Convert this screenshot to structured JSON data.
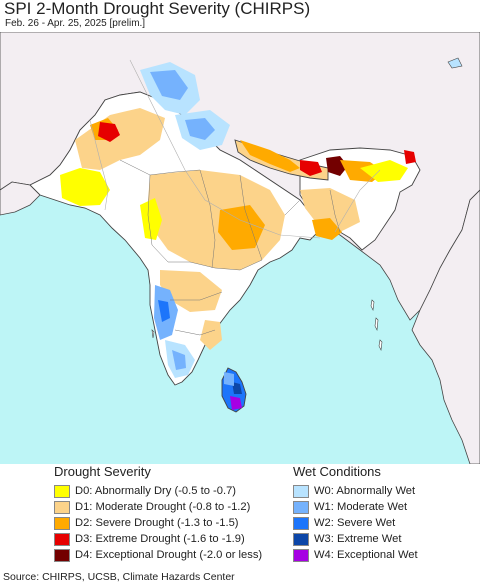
{
  "title": "SPI 2-Month Drought Severity (CHIRPS)",
  "subtitle": "Feb. 26 - Apr. 25, 2025 [prelim.]",
  "colors": {
    "ocean": "#bdf5f6",
    "outside_land": "#f3eef2",
    "no_anomaly": "#ffffff",
    "border": "#444444",
    "state_border": "#777777",
    "river": "#b0b0b0"
  },
  "legend": {
    "drought": {
      "title": "Drought Severity",
      "items": [
        {
          "code": "D0",
          "label": "D0: Abnormally Dry (-0.5 to -0.7)",
          "color": "#ffff00"
        },
        {
          "code": "D1",
          "label": "D1: Moderate Drought (-0.8 to -1.2)",
          "color": "#fcd38a"
        },
        {
          "code": "D2",
          "label": "D2: Severe Drought (-1.3 to -1.5)",
          "color": "#ffaa00"
        },
        {
          "code": "D3",
          "label": "D3: Extreme Drought (-1.6 to -1.9)",
          "color": "#e60000"
        },
        {
          "code": "D4",
          "label": "D4: Exceptional Drought (-2.0 or less)",
          "color": "#730000"
        }
      ]
    },
    "wet": {
      "title": "Wet Conditions",
      "items": [
        {
          "code": "W0",
          "label": "W0: Abnormally Wet",
          "color": "#b8e3ff"
        },
        {
          "code": "W1",
          "label": "W1: Moderate Wet",
          "color": "#75b2fd"
        },
        {
          "code": "W2",
          "label": "W2: Severe Wet",
          "color": "#1c75fb"
        },
        {
          "code": "W3",
          "label": "W3: Extreme Wet",
          "color": "#0c46a8"
        },
        {
          "code": "W4",
          "label": "W4: Exceptional Wet",
          "color": "#a600e3"
        }
      ]
    }
  },
  "source": "Source: CHIRPS, UCSB, Climate Hazards Center"
}
